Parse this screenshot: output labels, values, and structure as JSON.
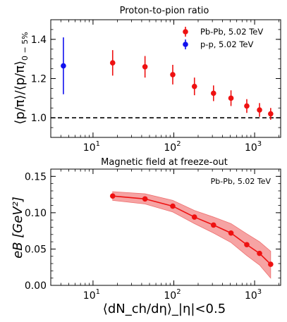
{
  "chart_data": [
    {
      "type": "scatter",
      "title": "Proton-to-pion ratio",
      "ylabel": "⟨p/π⟩/⟨p/π⟩",
      "ylabel_sub": "0 − 5%",
      "xscale": "log",
      "xlim": [
        3,
        2100
      ],
      "ylim": [
        0.9,
        1.5
      ],
      "yticks": [
        1.0,
        1.2,
        1.4
      ],
      "ytick_labels": [
        "1.0",
        "1.2",
        "1.4"
      ],
      "xticks": [
        10,
        100,
        1000
      ],
      "xtick_labels": [
        {
          "base": "10",
          "exp": "1"
        },
        {
          "base": "10",
          "exp": "2"
        },
        {
          "base": "10",
          "exp": "3"
        }
      ],
      "reference_line": 1.0,
      "legend_position": "top-right",
      "series": [
        {
          "name": "Pb-Pb, 5.02 TeV",
          "color": "#ee1111",
          "x": [
            17.5,
            44,
            97,
            180,
            310,
            510,
            800,
            1150,
            1580
          ],
          "y": [
            1.28,
            1.26,
            1.22,
            1.16,
            1.125,
            1.1,
            1.06,
            1.04,
            1.02
          ],
          "err": [
            0.065,
            0.055,
            0.05,
            0.045,
            0.04,
            0.04,
            0.035,
            0.035,
            0.03
          ]
        },
        {
          "name": "p-p, 5.02 TeV",
          "color": "#1111ee",
          "x": [
            4.3
          ],
          "y": [
            1.265
          ],
          "err": [
            0.145
          ]
        }
      ]
    },
    {
      "type": "line",
      "title": "Magnetic field at freeze-out",
      "annotation": "Pb-Pb, 5.02 TeV",
      "ylabel": "eB [GeV²]",
      "xlabel": "⟨dN_ch/dη⟩_|η|<0.5",
      "xscale": "log",
      "xlim": [
        3,
        2100
      ],
      "ylim": [
        0,
        0.16
      ],
      "yticks": [
        0,
        0.05,
        0.1,
        0.15
      ],
      "ytick_labels": [
        "0.00",
        "0.05",
        "0.10",
        "0.15"
      ],
      "xticks": [
        10,
        100,
        1000
      ],
      "xtick_labels": [
        {
          "base": "10",
          "exp": "1"
        },
        {
          "base": "10",
          "exp": "2"
        },
        {
          "base": "10",
          "exp": "3"
        }
      ],
      "series": [
        {
          "color": "#ee1111",
          "band_color": "#f6a3a3",
          "x": [
            17.5,
            44,
            97,
            180,
            310,
            510,
            800,
            1150,
            1580
          ],
          "y": [
            0.123,
            0.119,
            0.109,
            0.094,
            0.083,
            0.072,
            0.056,
            0.044,
            0.029
          ],
          "band_low": [
            0.117,
            0.112,
            0.101,
            0.085,
            0.072,
            0.059,
            0.041,
            0.028,
            0.01
          ],
          "band_high": [
            0.129,
            0.126,
            0.117,
            0.103,
            0.094,
            0.085,
            0.071,
            0.06,
            0.047
          ]
        }
      ]
    }
  ]
}
